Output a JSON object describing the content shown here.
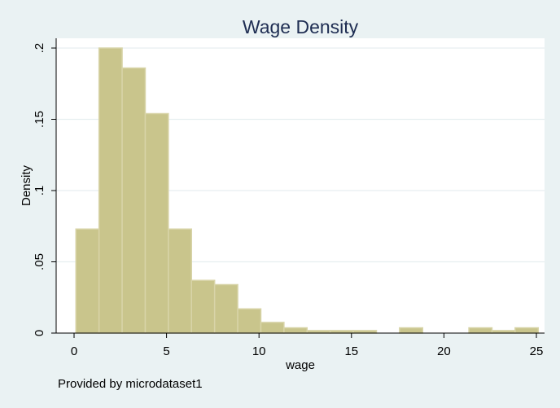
{
  "chart_data": {
    "type": "bar",
    "title": "Wage Density",
    "xlabel": "wage",
    "ylabel": "Density",
    "note": "Provided by microdataset1",
    "xlim": [
      0,
      25
    ],
    "ylim": [
      0,
      0.2
    ],
    "xticks": [
      0,
      5,
      10,
      15,
      20,
      25
    ],
    "xtick_labels": [
      "0",
      "5",
      "10",
      "15",
      "20",
      "25"
    ],
    "yticks": [
      0,
      0.05,
      0.1,
      0.15,
      0.2
    ],
    "ytick_labels": [
      "0",
      ".05",
      ".1",
      ".15",
      ".2"
    ],
    "grid": true,
    "bins": [
      {
        "x0": 0.1,
        "x1": 1.35,
        "value": 0.073
      },
      {
        "x0": 1.35,
        "x1": 2.6,
        "value": 0.2
      },
      {
        "x0": 2.6,
        "x1": 3.85,
        "value": 0.186
      },
      {
        "x0": 3.85,
        "x1": 5.1,
        "value": 0.154
      },
      {
        "x0": 5.1,
        "x1": 6.35,
        "value": 0.073
      },
      {
        "x0": 6.35,
        "x1": 7.6,
        "value": 0.037
      },
      {
        "x0": 7.6,
        "x1": 8.85,
        "value": 0.034
      },
      {
        "x0": 8.85,
        "x1": 10.1,
        "value": 0.017
      },
      {
        "x0": 10.1,
        "x1": 11.35,
        "value": 0.0075
      },
      {
        "x0": 11.35,
        "x1": 12.6,
        "value": 0.0037
      },
      {
        "x0": 12.6,
        "x1": 13.85,
        "value": 0.0018
      },
      {
        "x0": 13.85,
        "x1": 15.1,
        "value": 0.0018
      },
      {
        "x0": 15.1,
        "x1": 16.35,
        "value": 0.0018
      },
      {
        "x0": 16.35,
        "x1": 17.6,
        "value": 0
      },
      {
        "x0": 17.6,
        "x1": 18.85,
        "value": 0.0037
      },
      {
        "x0": 18.85,
        "x1": 20.1,
        "value": 0
      },
      {
        "x0": 20.1,
        "x1": 21.35,
        "value": 0
      },
      {
        "x0": 21.35,
        "x1": 22.6,
        "value": 0.0037
      },
      {
        "x0": 22.6,
        "x1": 23.85,
        "value": 0.0018
      },
      {
        "x0": 23.85,
        "x1": 25.1,
        "value": 0.0037
      }
    ],
    "colors": {
      "bar_fill": "#c9c58c",
      "bar_edge": "#d8d4a8",
      "plot_bg": "#ffffff",
      "outer_bg": "#eaf2f3",
      "grid": "#e6eef0",
      "title": "#1e2d52"
    }
  }
}
